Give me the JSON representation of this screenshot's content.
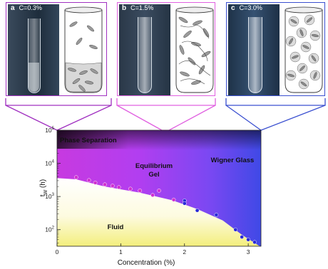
{
  "panels": [
    {
      "letter": "a",
      "conc_label": "C=0.3%",
      "color": "#a030c0"
    },
    {
      "letter": "b",
      "conc_label": "C=1.5%",
      "color": "#e060e0"
    },
    {
      "letter": "c",
      "conc_label": "C=3.0%",
      "color": "#3a4fd0"
    }
  ],
  "chart_data": {
    "type": "scatter",
    "title": "",
    "xlabel": "Concentration (%)",
    "ylabel": "t",
    "ylabel_sub": "W",
    "ylabel_unit": " (h)",
    "xlim": [
      0,
      3.2
    ],
    "ylim_exponent": [
      1.5,
      5
    ],
    "y_scale": "log",
    "x_ticks": [
      0,
      1,
      2,
      3
    ],
    "y_ticks": [
      100,
      1000,
      10000,
      100000
    ],
    "y_tick_base": "10",
    "y_tick_exponents": [
      "2",
      "3",
      "4",
      "5"
    ],
    "regions": {
      "phase_separation": "Phase Separation",
      "gel_line1": "Equilibrium",
      "gel_line2": "Gel",
      "wigner_glass": "Wigner Glass",
      "fluid": "Fluid"
    },
    "series": [
      {
        "color": "#d030d0",
        "x": [
          0.3,
          0.5,
          0.6,
          0.75,
          0.87,
          0.97,
          1.15,
          1.3,
          1.5,
          1.6,
          1.83
        ],
        "y": [
          3800,
          3100,
          2600,
          2300,
          2100,
          1900,
          1700,
          1500,
          1100,
          1500,
          800
        ]
      },
      {
        "color": "#2a2ad8",
        "x": [
          2.0,
          2.0,
          2.2,
          2.5,
          2.8,
          2.9,
          3.0,
          3.1
        ],
        "y": [
          750,
          620,
          380,
          280,
          100,
          60,
          50,
          42
        ]
      }
    ]
  }
}
